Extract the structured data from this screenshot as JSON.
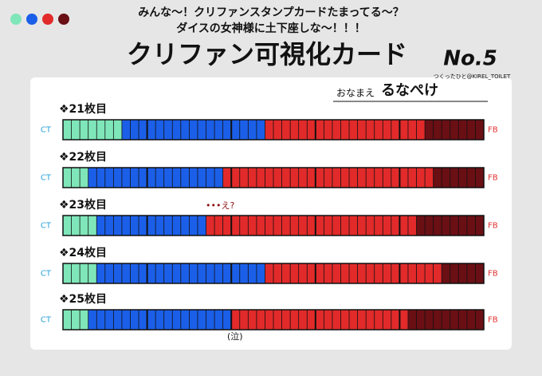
{
  "header": {
    "line1": "みんな〜！クリファンスタンプカードたまってる〜？",
    "line2": "ダイスの女神様に土下座しな〜！！！",
    "title": "クリファン可視化カード",
    "number": "No.5",
    "credit": "つくったひと@KIREL_TOILET"
  },
  "name": {
    "label": "おなまえ",
    "value": "るなぺけ"
  },
  "end_labels": {
    "left": "CT",
    "right": "FB"
  },
  "colors": [
    "#7fe6b9",
    "#1b5fe8",
    "#e22a2a",
    "#6a0f14"
  ],
  "rows": [
    {
      "label": "❖21枚目",
      "counts": [
        7,
        17,
        19,
        7
      ]
    },
    {
      "label": "❖22枚目",
      "counts": [
        3,
        16,
        25,
        6
      ]
    },
    {
      "label": "❖23枚目",
      "counts": [
        4,
        13,
        25,
        8
      ]
    },
    {
      "label": "❖24枚目",
      "counts": [
        4,
        20,
        21,
        5
      ]
    },
    {
      "label": "❖25枚目",
      "counts": [
        3,
        17,
        21,
        9
      ]
    }
  ],
  "annotations": {
    "row3": "•••え?",
    "row5": "(泣)"
  }
}
